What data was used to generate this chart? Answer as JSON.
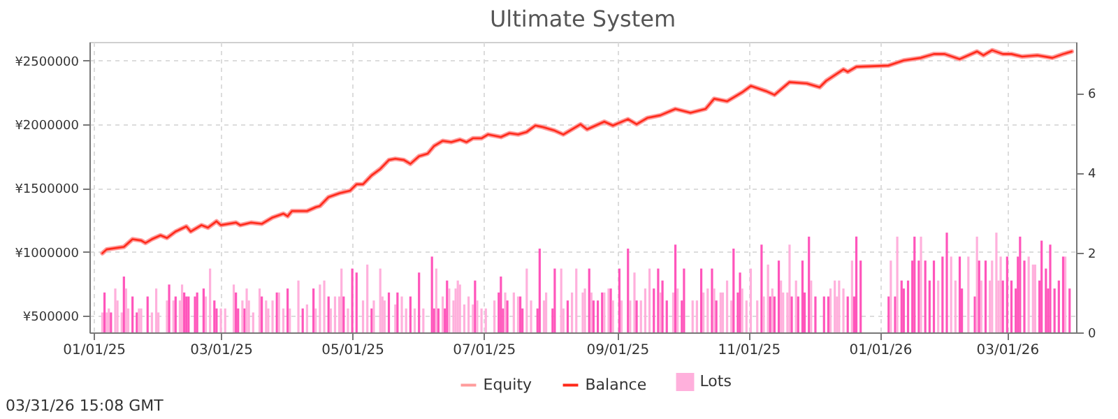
{
  "chart_data": {
    "type": "line",
    "title": "Ultimate System",
    "annotations": [
      "03/31/26 15:08 GMT"
    ],
    "xlim": [
      "2024-12-30",
      "2026-04-02"
    ],
    "xticks": [
      {
        "value": "2025-01-01",
        "label": "01/01/25"
      },
      {
        "value": "2025-03-01",
        "label": "03/01/25"
      },
      {
        "value": "2025-05-01",
        "label": "05/01/25"
      },
      {
        "value": "2025-07-01",
        "label": "07/01/25"
      },
      {
        "value": "2025-09-01",
        "label": "09/01/25"
      },
      {
        "value": "2025-11-01",
        "label": "11/01/25"
      },
      {
        "value": "2026-01-01",
        "label": "01/01/26"
      },
      {
        "value": "2026-03-01",
        "label": "03/01/26"
      }
    ],
    "ylim": [
      370000,
      2645000
    ],
    "yticks": [
      {
        "value": 500000,
        "label": "¥500000"
      },
      {
        "value": 1000000,
        "label": "¥1000000"
      },
      {
        "value": 1500000,
        "label": "¥1500000"
      },
      {
        "value": 2000000,
        "label": "¥2000000"
      },
      {
        "value": 2500000,
        "label": "¥2500000"
      }
    ],
    "y2lim": [
      0,
      7.28
    ],
    "y2ticks": [
      0,
      2,
      4,
      6
    ],
    "grid": true,
    "legend": "bottom",
    "series": [
      {
        "name": "Equity",
        "color": "#ff9c9c",
        "x": [
          "2025-01-05",
          "2025-01-07",
          "2025-01-15",
          "2025-01-19",
          "2025-01-23",
          "2025-01-25",
          "2025-01-28",
          "2025-02-01",
          "2025-02-04",
          "2025-02-08",
          "2025-02-13",
          "2025-02-15",
          "2025-02-20",
          "2025-02-23",
          "2025-02-27",
          "2025-03-01",
          "2025-03-08",
          "2025-03-10",
          "2025-03-15",
          "2025-03-20",
          "2025-03-25",
          "2025-03-30",
          "2025-04-01",
          "2025-04-03",
          "2025-04-10",
          "2025-04-14",
          "2025-04-16",
          "2025-04-20",
          "2025-04-25",
          "2025-04-30",
          "2025-05-03",
          "2025-05-06",
          "2025-05-10",
          "2025-05-14",
          "2025-05-18",
          "2025-05-21",
          "2025-05-25",
          "2025-05-28",
          "2025-06-01",
          "2025-06-05",
          "2025-06-08",
          "2025-06-12",
          "2025-06-16",
          "2025-06-20",
          "2025-06-23",
          "2025-06-26",
          "2025-06-30",
          "2025-07-03",
          "2025-07-09",
          "2025-07-13",
          "2025-07-17",
          "2025-07-21",
          "2025-07-25",
          "2025-07-28",
          "2025-08-03",
          "2025-08-07",
          "2025-08-15",
          "2025-08-18",
          "2025-08-26",
          "2025-08-30",
          "2025-09-06",
          "2025-09-10",
          "2025-09-15",
          "2025-09-21",
          "2025-09-28",
          "2025-10-05",
          "2025-10-12",
          "2025-10-16",
          "2025-10-22",
          "2025-10-29",
          "2025-11-02",
          "2025-11-09",
          "2025-11-13",
          "2025-11-20",
          "2025-11-28",
          "2025-12-04",
          "2025-12-07",
          "2025-12-15",
          "2025-12-17",
          "2025-12-21",
          "2026-01-05",
          "2026-01-12",
          "2026-01-20",
          "2026-01-26",
          "2026-01-31",
          "2026-02-07",
          "2026-02-15",
          "2026-02-18",
          "2026-02-22",
          "2026-02-27",
          "2026-03-03",
          "2026-03-08",
          "2026-03-15",
          "2026-03-22",
          "2026-03-27",
          "2026-03-31"
        ],
        "values": [
          990000,
          1020000,
          1040000,
          1100000,
          1090000,
          1070000,
          1100000,
          1130000,
          1110000,
          1160000,
          1200000,
          1160000,
          1210000,
          1190000,
          1240000,
          1210000,
          1230000,
          1210000,
          1230000,
          1220000,
          1270000,
          1300000,
          1280000,
          1320000,
          1320000,
          1350000,
          1360000,
          1430000,
          1460000,
          1480000,
          1530000,
          1530000,
          1600000,
          1650000,
          1720000,
          1730000,
          1720000,
          1690000,
          1750000,
          1770000,
          1830000,
          1870000,
          1860000,
          1880000,
          1860000,
          1890000,
          1890000,
          1920000,
          1900000,
          1930000,
          1920000,
          1940000,
          1990000,
          1980000,
          1950000,
          1920000,
          2000000,
          1960000,
          2020000,
          1990000,
          2040000,
          2000000,
          2050000,
          2070000,
          2120000,
          2090000,
          2120000,
          2200000,
          2180000,
          2250000,
          2300000,
          2260000,
          2230000,
          2330000,
          2320000,
          2290000,
          2340000,
          2430000,
          2410000,
          2450000,
          2460000,
          2500000,
          2520000,
          2550000,
          2550000,
          2510000,
          2570000,
          2540000,
          2580000,
          2550000,
          2550000,
          2530000,
          2540000,
          2520000,
          2550000,
          2570000
        ]
      },
      {
        "name": "Balance",
        "color": "#ff2a1a",
        "x": [
          "2025-01-05",
          "2025-01-07",
          "2025-01-15",
          "2025-01-19",
          "2025-01-23",
          "2025-01-25",
          "2025-01-28",
          "2025-02-01",
          "2025-02-04",
          "2025-02-08",
          "2025-02-13",
          "2025-02-15",
          "2025-02-20",
          "2025-02-23",
          "2025-02-27",
          "2025-03-01",
          "2025-03-08",
          "2025-03-10",
          "2025-03-15",
          "2025-03-20",
          "2025-03-25",
          "2025-03-30",
          "2025-04-01",
          "2025-04-03",
          "2025-04-10",
          "2025-04-14",
          "2025-04-16",
          "2025-04-20",
          "2025-04-25",
          "2025-04-30",
          "2025-05-03",
          "2025-05-06",
          "2025-05-10",
          "2025-05-14",
          "2025-05-18",
          "2025-05-21",
          "2025-05-25",
          "2025-05-28",
          "2025-06-01",
          "2025-06-05",
          "2025-06-08",
          "2025-06-12",
          "2025-06-16",
          "2025-06-20",
          "2025-06-23",
          "2025-06-26",
          "2025-06-30",
          "2025-07-03",
          "2025-07-09",
          "2025-07-13",
          "2025-07-17",
          "2025-07-21",
          "2025-07-25",
          "2025-07-28",
          "2025-08-03",
          "2025-08-07",
          "2025-08-15",
          "2025-08-18",
          "2025-08-26",
          "2025-08-30",
          "2025-09-06",
          "2025-09-10",
          "2025-09-15",
          "2025-09-21",
          "2025-09-28",
          "2025-10-05",
          "2025-10-12",
          "2025-10-16",
          "2025-10-22",
          "2025-10-29",
          "2025-11-02",
          "2025-11-09",
          "2025-11-13",
          "2025-11-20",
          "2025-11-28",
          "2025-12-04",
          "2025-12-07",
          "2025-12-15",
          "2025-12-17",
          "2025-12-21",
          "2026-01-05",
          "2026-01-12",
          "2026-01-20",
          "2026-01-26",
          "2026-01-31",
          "2026-02-07",
          "2026-02-15",
          "2026-02-18",
          "2026-02-22",
          "2026-02-27",
          "2026-03-03",
          "2026-03-08",
          "2026-03-15",
          "2026-03-22",
          "2026-03-27",
          "2026-03-31"
        ],
        "values": [
          990000,
          1020000,
          1040000,
          1100000,
          1090000,
          1070000,
          1100000,
          1130000,
          1110000,
          1160000,
          1200000,
          1160000,
          1210000,
          1190000,
          1240000,
          1210000,
          1230000,
          1210000,
          1230000,
          1220000,
          1270000,
          1300000,
          1280000,
          1320000,
          1320000,
          1350000,
          1360000,
          1430000,
          1460000,
          1480000,
          1530000,
          1530000,
          1600000,
          1650000,
          1720000,
          1730000,
          1720000,
          1690000,
          1750000,
          1770000,
          1830000,
          1870000,
          1860000,
          1880000,
          1860000,
          1890000,
          1890000,
          1920000,
          1900000,
          1930000,
          1920000,
          1940000,
          1990000,
          1980000,
          1950000,
          1920000,
          2000000,
          1960000,
          2020000,
          1990000,
          2040000,
          2000000,
          2050000,
          2070000,
          2120000,
          2090000,
          2120000,
          2200000,
          2180000,
          2250000,
          2300000,
          2260000,
          2230000,
          2330000,
          2320000,
          2290000,
          2340000,
          2430000,
          2410000,
          2450000,
          2460000,
          2500000,
          2520000,
          2550000,
          2550000,
          2510000,
          2570000,
          2540000,
          2580000,
          2550000,
          2550000,
          2530000,
          2540000,
          2520000,
          2550000,
          2570000
        ]
      },
      {
        "name": "Lots",
        "type": "bar",
        "axis": "y2",
        "color": "#ffb0dc",
        "x": [
          "2025-01-05",
          "2025-01-06",
          "2025-01-07",
          "2025-01-08",
          "2025-01-09",
          "2025-01-11",
          "2025-01-12",
          "2025-01-14",
          "2025-01-15",
          "2025-01-16",
          "2025-01-17",
          "2025-01-19",
          "2025-01-21",
          "2025-01-22",
          "2025-01-23",
          "2025-01-26",
          "2025-01-28",
          "2025-01-30",
          "2025-01-31",
          "2025-02-04",
          "2025-02-05",
          "2025-02-07",
          "2025-02-08",
          "2025-02-10",
          "2025-02-11",
          "2025-02-12",
          "2025-02-13",
          "2025-02-14",
          "2025-02-17",
          "2025-02-18",
          "2025-02-21",
          "2025-02-22",
          "2025-02-24",
          "2025-02-26",
          "2025-02-27",
          "2025-03-01",
          "2025-03-03",
          "2025-03-07",
          "2025-03-08",
          "2025-03-09",
          "2025-03-11",
          "2025-03-12",
          "2025-03-13",
          "2025-03-14",
          "2025-03-16",
          "2025-03-19",
          "2025-03-20",
          "2025-03-22",
          "2025-03-23",
          "2025-03-25",
          "2025-03-27",
          "2025-03-28",
          "2025-03-30",
          "2025-04-01",
          "2025-04-02",
          "2025-04-06",
          "2025-04-08",
          "2025-04-10",
          "2025-04-13",
          "2025-04-14",
          "2025-04-16",
          "2025-04-18",
          "2025-04-20",
          "2025-04-21",
          "2025-04-23",
          "2025-04-25",
          "2025-04-26",
          "2025-04-27",
          "2025-04-29",
          "2025-05-01",
          "2025-05-03",
          "2025-05-06",
          "2025-05-08",
          "2025-05-10",
          "2025-05-11",
          "2025-05-14",
          "2025-05-15",
          "2025-05-16",
          "2025-05-18",
          "2025-05-21",
          "2025-05-22",
          "2025-05-24",
          "2025-05-26",
          "2025-05-28",
          "2025-05-30",
          "2025-06-01",
          "2025-06-03",
          "2025-06-07",
          "2025-06-08",
          "2025-06-09",
          "2025-06-10",
          "2025-06-12",
          "2025-06-13",
          "2025-06-14",
          "2025-06-15",
          "2025-06-17",
          "2025-06-18",
          "2025-06-19",
          "2025-06-20",
          "2025-06-22",
          "2025-06-24",
          "2025-06-26",
          "2025-06-27",
          "2025-06-28",
          "2025-06-30",
          "2025-07-02",
          "2025-07-06",
          "2025-07-08",
          "2025-07-09",
          "2025-07-10",
          "2025-07-11",
          "2025-07-12",
          "2025-07-15",
          "2025-07-17",
          "2025-07-18",
          "2025-07-19",
          "2025-07-21",
          "2025-07-23",
          "2025-07-26",
          "2025-07-27",
          "2025-07-29",
          "2025-07-30",
          "2025-08-02",
          "2025-08-03",
          "2025-08-06",
          "2025-08-07",
          "2025-08-09",
          "2025-08-11",
          "2025-08-13",
          "2025-08-16",
          "2025-08-17",
          "2025-08-19",
          "2025-08-20",
          "2025-08-21",
          "2025-08-23",
          "2025-08-25",
          "2025-08-26",
          "2025-08-28",
          "2025-08-29",
          "2025-08-30",
          "2025-09-02",
          "2025-09-03",
          "2025-09-06",
          "2025-09-07",
          "2025-09-09",
          "2025-09-10",
          "2025-09-12",
          "2025-09-14",
          "2025-09-16",
          "2025-09-18",
          "2025-09-20",
          "2025-09-21",
          "2025-09-22",
          "2025-09-24",
          "2025-09-27",
          "2025-09-28",
          "2025-09-29",
          "2025-10-01",
          "2025-10-02",
          "2025-10-06",
          "2025-10-08",
          "2025-10-10",
          "2025-10-11",
          "2025-10-13",
          "2025-10-15",
          "2025-10-16",
          "2025-10-17",
          "2025-10-19",
          "2025-10-20",
          "2025-10-22",
          "2025-10-24",
          "2025-10-25",
          "2025-10-27",
          "2025-10-28",
          "2025-10-29",
          "2025-10-31",
          "2025-11-02",
          "2025-11-05",
          "2025-11-07",
          "2025-11-08",
          "2025-11-10",
          "2025-11-11",
          "2025-11-12",
          "2025-11-13",
          "2025-11-15",
          "2025-11-16",
          "2025-11-17",
          "2025-11-19",
          "2025-11-20",
          "2025-11-21",
          "2025-11-23",
          "2025-11-24",
          "2025-11-26",
          "2025-11-27",
          "2025-11-29",
          "2025-11-30",
          "2025-12-02",
          "2025-12-06",
          "2025-12-08",
          "2025-12-09",
          "2025-12-11",
          "2025-12-12",
          "2025-12-13",
          "2025-12-15",
          "2025-12-17",
          "2025-12-19",
          "2025-12-20",
          "2025-12-21",
          "2025-12-23",
          "2026-01-05",
          "2026-01-06",
          "2026-01-08",
          "2026-01-09",
          "2026-01-11",
          "2026-01-12",
          "2026-01-14",
          "2026-01-16",
          "2026-01-17",
          "2026-01-19",
          "2026-01-20",
          "2026-01-22",
          "2026-01-24",
          "2026-01-26",
          "2026-01-28",
          "2026-01-30",
          "2026-02-01",
          "2026-02-03",
          "2026-02-05",
          "2026-02-07",
          "2026-02-08",
          "2026-02-11",
          "2026-02-14",
          "2026-02-15",
          "2026-02-16",
          "2026-02-17",
          "2026-02-19",
          "2026-02-21",
          "2026-02-22",
          "2026-02-24",
          "2026-02-25",
          "2026-02-26",
          "2026-02-27",
          "2026-03-01",
          "2026-03-03",
          "2026-03-05",
          "2026-03-06",
          "2026-03-07",
          "2026-03-09",
          "2026-03-11",
          "2026-03-13",
          "2026-03-14",
          "2026-03-16",
          "2026-03-17",
          "2026-03-19",
          "2026-03-20",
          "2026-03-21",
          "2026-03-23",
          "2026-03-25",
          "2026-03-27",
          "2026-03-28",
          "2026-03-30"
        ],
        "values": [
          0.5,
          1.0,
          0.5,
          0.6,
          0.5,
          1.1,
          0.8,
          0.5,
          1.4,
          1.1,
          0.6,
          0.9,
          0.5,
          0.6,
          0.6,
          0.9,
          0.5,
          1.1,
          0.5,
          0.8,
          1.2,
          0.8,
          0.9,
          0.8,
          1.2,
          1.0,
          0.9,
          0.9,
          0.9,
          1.0,
          1.1,
          0.9,
          1.6,
          0.8,
          0.6,
          0.6,
          0.6,
          1.2,
          1.0,
          0.6,
          0.8,
          0.6,
          1.1,
          0.8,
          0.5,
          1.1,
          0.9,
          0.8,
          0.6,
          0.8,
          1.0,
          1.0,
          0.6,
          1.1,
          0.6,
          1.3,
          0.6,
          0.7,
          1.1,
          0.6,
          1.2,
          1.3,
          0.9,
          0.6,
          0.9,
          0.9,
          1.6,
          0.9,
          0.6,
          1.6,
          1.5,
          0.8,
          1.7,
          0.6,
          0.8,
          1.6,
          0.9,
          0.8,
          1.0,
          0.7,
          1.0,
          0.9,
          0.6,
          0.9,
          0.6,
          1.5,
          0.6,
          1.9,
          0.6,
          1.6,
          0.6,
          0.9,
          0.6,
          1.3,
          1.1,
          0.8,
          1.1,
          1.3,
          1.2,
          0.7,
          0.9,
          0.7,
          1.3,
          0.8,
          0.6,
          0.6,
          0.8,
          1.0,
          1.4,
          0.6,
          1.0,
          0.8,
          1.0,
          0.9,
          0.9,
          0.6,
          1.6,
          0.8,
          0.6,
          2.1,
          0.8,
          1.0,
          0.6,
          1.6,
          1.6,
          0.6,
          0.8,
          1.0,
          1.6,
          1.0,
          1.1,
          1.6,
          1.0,
          0.8,
          0.8,
          1.0,
          1.0,
          1.1,
          1.1,
          0.8,
          1.6,
          0.8,
          2.1,
          0.8,
          1.5,
          0.8,
          0.8,
          1.1,
          1.6,
          1.1,
          1.6,
          1.0,
          1.3,
          0.8,
          1.0,
          2.2,
          1.1,
          0.8,
          1.6,
          0.8,
          0.8,
          1.6,
          1.0,
          1.1,
          1.6,
          1.1,
          0.8,
          1.0,
          1.0,
          1.3,
          0.8,
          2.1,
          1.0,
          1.5,
          1.1,
          0.8,
          1.6,
          0.8,
          2.2,
          0.9,
          1.7,
          0.9,
          1.1,
          0.9,
          1.8,
          1.3,
          1.0,
          1.0,
          2.2,
          0.9,
          1.3,
          0.9,
          1.8,
          1.0,
          2.4,
          1.3,
          0.9,
          0.9,
          0.9,
          1.1,
          1.3,
          0.9,
          1.3,
          1.1,
          0.9,
          1.8,
          0.9,
          2.4,
          1.8,
          0.9,
          1.8,
          0.9,
          2.4,
          1.3,
          1.1,
          1.3,
          1.8,
          2.4,
          1.8,
          2.4,
          1.8,
          1.3,
          1.8,
          1.3,
          1.9,
          2.5,
          1.9,
          1.3,
          1.9,
          1.1,
          1.9,
          0.9,
          2.4,
          1.8,
          1.3,
          1.8,
          1.3,
          1.8,
          2.5,
          1.3,
          1.9,
          1.3,
          1.9,
          1.3,
          1.1,
          1.9,
          2.4,
          1.8,
          1.9,
          1.7,
          1.7,
          1.3,
          2.3,
          1.6,
          1.1,
          2.2,
          1.1,
          1.3,
          1.9,
          1.9,
          1.1
        ],
        "colors": [
          "#ffb0dc",
          "#ff55bb",
          "#ffb0dc",
          "#ffb0dc",
          "#ff55bb",
          "#ffb0dc",
          "#ffb0dc",
          "#ffb0dc",
          "#ff55bb",
          "#ffb0dc",
          "#ffb0dc",
          "#ff55bb",
          "#ff55bb",
          "#ffb0dc",
          "#ffb0dc",
          "#ff55bb",
          "#ffb0dc",
          "#ffb0dc",
          "#ffb0dc",
          "#ffb0dc",
          "#ff55bb",
          "#ffb0dc",
          "#ff55bb",
          "#ffb0dc",
          "#ffb0dc",
          "#ff55bb",
          "#ff55bb",
          "#ff55bb",
          "#ff55bb",
          "#ff55bb",
          "#ff55bb",
          "#ffb0dc",
          "#ffb0dc",
          "#ff55bb",
          "#ff55bb",
          "#ffb0dc",
          "#ffb0dc",
          "#ffb0dc",
          "#ff55bb",
          "#ff55bb",
          "#ffb0dc",
          "#ff55bb",
          "#ffb0dc",
          "#ffb0dc",
          "#ffb0dc",
          "#ffb0dc",
          "#ff55bb",
          "#ffb0dc",
          "#ffb0dc",
          "#ffb0dc",
          "#ff55bb",
          "#ffb0dc",
          "#ffb0dc",
          "#ff55bb",
          "#ffb0dc",
          "#ffb0dc",
          "#ff55bb",
          "#ffb0dc",
          "#ff55bb",
          "#ffb0dc",
          "#ffb0dc",
          "#ffb0dc",
          "#ff55bb",
          "#ffb0dc",
          "#ffb0dc",
          "#ffb0dc",
          "#ffb0dc",
          "#ff55bb",
          "#ffb0dc",
          "#ff55bb",
          "#ff55bb",
          "#ffb0dc",
          "#ffb0dc",
          "#ff55bb",
          "#ffb0dc",
          "#ffb0dc",
          "#ffb0dc",
          "#ffb0dc",
          "#ff55bb",
          "#ffb0dc",
          "#ff55bb",
          "#ffb0dc",
          "#ffb0dc",
          "#ff55bb",
          "#ffb0dc",
          "#ff55bb",
          "#ffb0dc",
          "#ff55bb",
          "#ff55bb",
          "#ffb0dc",
          "#ff55bb",
          "#ffb0dc",
          "#ff55bb",
          "#ff55bb",
          "#ffb0dc",
          "#ffb0dc",
          "#ffb0dc",
          "#ffb0dc",
          "#ffb0dc",
          "#ffb0dc",
          "#ffb0dc",
          "#ffb0dc",
          "#ff55bb",
          "#ffb0dc",
          "#ffb0dc",
          "#ffb0dc",
          "#ffb0dc",
          "#ff55bb",
          "#ff55bb",
          "#ff55bb",
          "#ffb0dc",
          "#ff55bb",
          "#ffb0dc",
          "#ffb0dc",
          "#ff55bb",
          "#ff55bb",
          "#ffb0dc",
          "#ffb0dc",
          "#ff55bb",
          "#ff55bb",
          "#ffb0dc",
          "#ffb0dc",
          "#ff55bb",
          "#ff55bb",
          "#ffb0dc",
          "#ffb0dc",
          "#ff55bb",
          "#ffb0dc",
          "#ffb0dc",
          "#ffb0dc",
          "#ffb0dc",
          "#ff55bb",
          "#ffb0dc",
          "#ff55bb",
          "#ff55bb",
          "#ff55bb",
          "#ffb0dc",
          "#ffb0dc",
          "#ff55bb",
          "#ffb0dc",
          "#ff55bb",
          "#ffb0dc",
          "#ff55bb",
          "#ffb0dc",
          "#ffb0dc",
          "#ff55bb",
          "#ffb0dc",
          "#ffb0dc",
          "#ffb0dc",
          "#ff55bb",
          "#ff55bb",
          "#ffb0dc",
          "#ff55bb",
          "#ff55bb",
          "#ffb0dc",
          "#ff55bb",
          "#ffb0dc",
          "#ff55bb",
          "#ff55bb",
          "#ffb0dc",
          "#ffb0dc",
          "#ff55bb",
          "#ffb0dc",
          "#ffb0dc",
          "#ff55bb",
          "#ffb0dc",
          "#ff55bb",
          "#ffb0dc",
          "#ffb0dc",
          "#ffb0dc",
          "#ffb0dc",
          "#ff55bb",
          "#ff55bb",
          "#ff55bb",
          "#ffb0dc",
          "#ffb0dc",
          "#ffb0dc",
          "#ffb0dc",
          "#ff55bb",
          "#ffb0dc",
          "#ffb0dc",
          "#ff55bb",
          "#ffb0dc",
          "#ff55bb",
          "#ff55bb",
          "#ffb0dc",
          "#ffb0dc",
          "#ffb0dc",
          "#ffb0dc",
          "#ff55bb",
          "#ffb0dc",
          "#ff55bb",
          "#ff55bb",
          "#ff55bb",
          "#ff55bb",
          "#ffb0dc",
          "#ff55bb",
          "#ff55bb",
          "#ff55bb",
          "#ffb0dc",
          "#ffb0dc",
          "#ffb0dc",
          "#ffb0dc",
          "#ffb0dc",
          "#ff55bb",
          "#ffb0dc",
          "#ff55bb",
          "#ff55bb",
          "#ff55bb",
          "#ff55bb",
          "#ffb0dc",
          "#ff55bb",
          "#ffb0dc",
          "#ff55bb",
          "#ff55bb",
          "#ff55bb",
          "#ff55bb",
          "#ff55bb",
          "#ff55bb",
          "#ffb0dc",
          "#ff55bb",
          "#ff55bb",
          "#ff55bb",
          "#ffb0dc",
          "#ff55bb",
          "#ff55bb",
          "#ffb0dc",
          "#ffb0dc",
          "#ff55bb",
          "#ff55bb",
          "#ffb0dc",
          "#ff55bb",
          "#ffb0dc",
          "#ff55bb",
          "#ffb0dc",
          "#ff55bb",
          "#ffb0dc",
          "#ffb0dc",
          "#ffb0dc",
          "#ffb0dc",
          "#ffb0dc",
          "#ff55bb",
          "#ff55bb",
          "#ff55bb",
          "#ff55bb",
          "#ff55bb",
          "#ff55bb",
          "#ff55bb",
          "#ffb0dc",
          "#ffb0dc",
          "#ffb0dc",
          "#ff55bb",
          "#ff55bb",
          "#ff55bb",
          "#ff55bb",
          "#ff55bb",
          "#ff55bb",
          "#ff55bb",
          "#ff55bb",
          "#ffb0dc",
          "#ff55bb"
        ]
      }
    ]
  }
}
